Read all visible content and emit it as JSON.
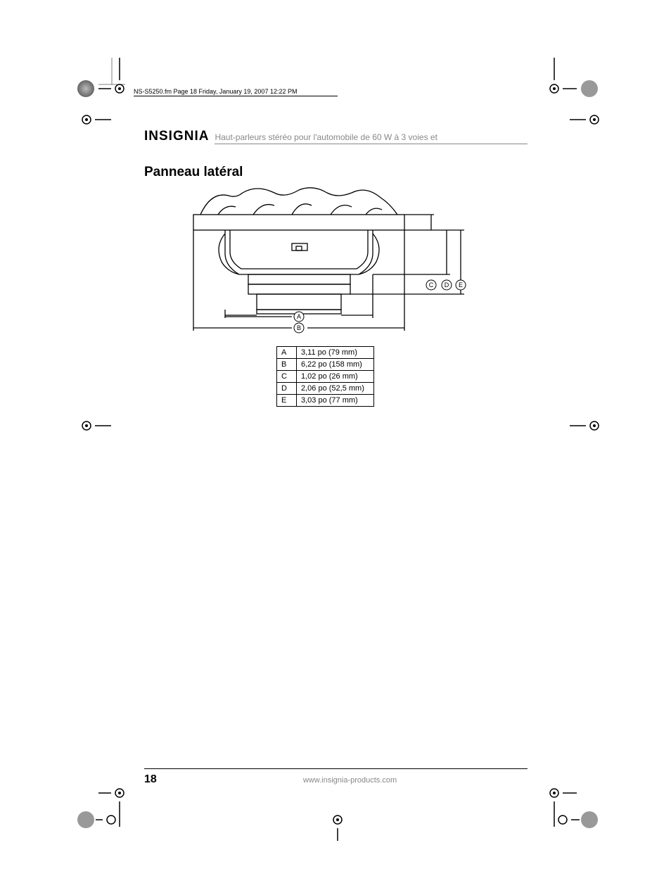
{
  "print_header": "NS-S5250.fm  Page 18  Friday, January 19, 2007  12:22 PM",
  "brand": "INSIGNIA",
  "doc_title": "Haut-parleurs stéréo pour l'automobile de 60 W à 3 voies et",
  "section_heading": "Panneau latéral",
  "diagram": {
    "labels": {
      "A": "A",
      "B": "B",
      "C": "C",
      "D": "D",
      "E": "E"
    },
    "stroke": "#000000",
    "stroke_width": 1.3,
    "background": "#ffffff"
  },
  "dimensions_table": {
    "rows": [
      {
        "key": "A",
        "value": "3,11 po (79 mm)"
      },
      {
        "key": "B",
        "value": "6,22 po (158 mm)"
      },
      {
        "key": "C",
        "value": "1,02 po (26 mm)"
      },
      {
        "key": "D",
        "value": "2,06 po (52,5 mm)"
      },
      {
        "key": "E",
        "value": "3,03 po (77 mm)"
      }
    ]
  },
  "footer": {
    "page_number": "18",
    "url": "www.insignia-products.com"
  },
  "crop_marks": {
    "color_target": "#888888",
    "line": "#000000"
  }
}
